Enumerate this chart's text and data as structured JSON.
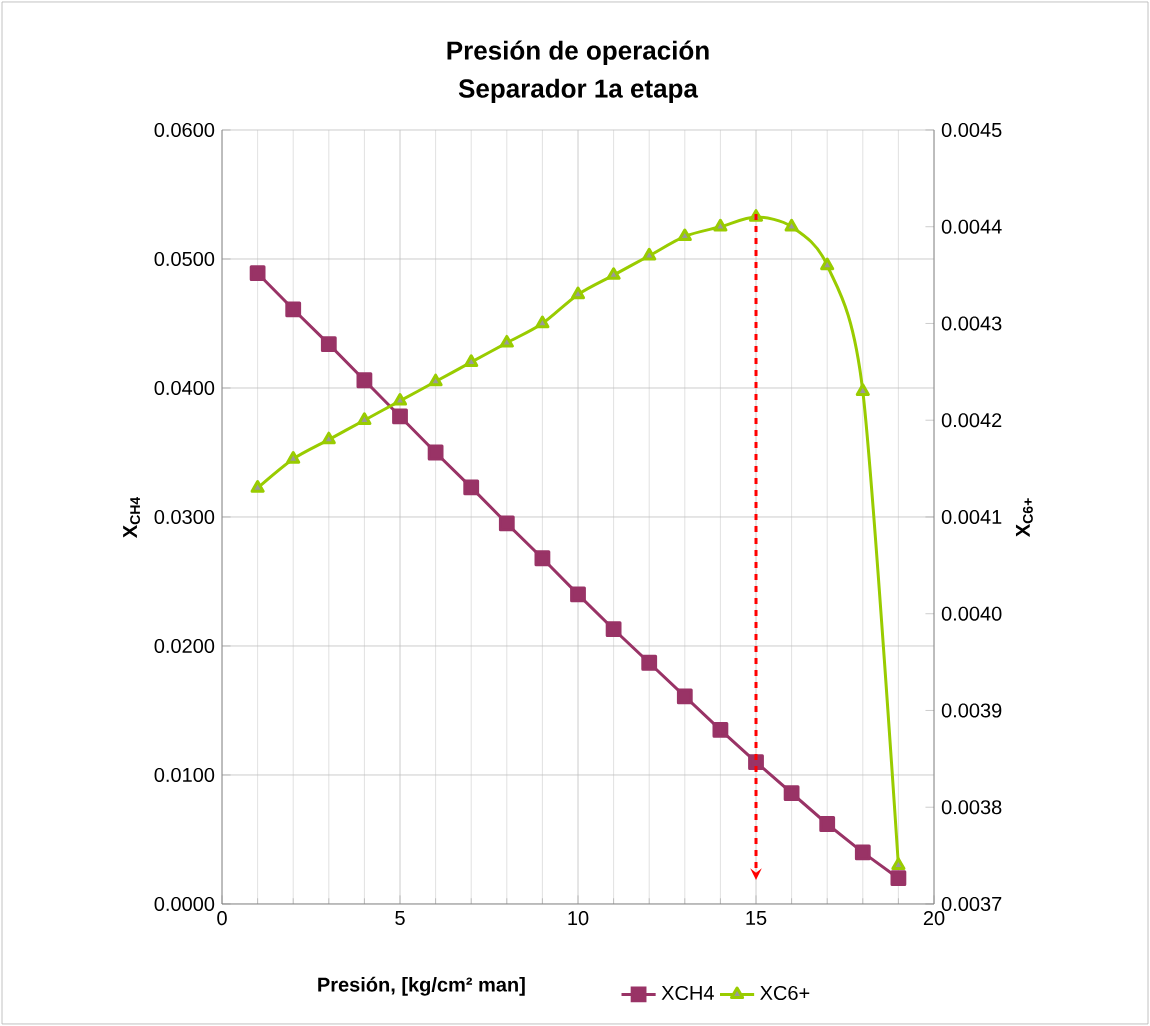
{
  "chart_data": {
    "type": "line",
    "title": "Presión de operación",
    "subtitle": "Separador 1a etapa",
    "xlabel": "Presión, [kg/cm² man]",
    "ylabel": "X$_{CH4}$",
    "y2label": "X$_{C6+}$",
    "x": [
      1,
      2,
      3,
      4,
      5,
      6,
      7,
      8,
      9,
      10,
      11,
      12,
      13,
      14,
      15,
      16,
      17,
      18,
      19
    ],
    "series": [
      {
        "name": "XCH4",
        "color": "#993366",
        "marker": "square",
        "values": [
          0.0489,
          0.0461,
          0.0434,
          0.0406,
          0.0378,
          0.035,
          0.0323,
          0.0295,
          0.0268,
          0.024,
          0.0213,
          0.0187,
          0.0161,
          0.0135,
          0.011,
          0.0086,
          0.0062,
          0.004,
          0.002
        ]
      },
      {
        "name": "XC6+",
        "color": "#99cc00",
        "marker": "triangle",
        "axis": "y2",
        "values": [
          0.00413,
          0.00416,
          0.00418,
          0.0042,
          0.00422,
          0.00424,
          0.00426,
          0.00428,
          0.0043,
          0.00433,
          0.00435,
          0.00437,
          0.00439,
          0.0044,
          0.00441,
          0.0044,
          0.00436,
          0.00423,
          0.00374
        ]
      }
    ],
    "xlim": [
      0,
      20
    ],
    "xticks": [
      0,
      5,
      10,
      15,
      20
    ],
    "ylim": [
      0,
      0.06
    ],
    "yticks": [
      {
        "value": 0,
        "label": "0.0000"
      },
      {
        "value": 0.01,
        "label": "0.0100"
      },
      {
        "value": 0.02,
        "label": "0.0200"
      },
      {
        "value": 0.03,
        "label": "0.0300"
      },
      {
        "value": 0.04,
        "label": "0.0400"
      },
      {
        "value": 0.05,
        "label": "0.0500"
      },
      {
        "value": 0.06,
        "label": "0.0600"
      }
    ],
    "y2lim": [
      0.0037,
      0.0045
    ],
    "y2ticks": [
      {
        "value": 0.0037,
        "label": "0.0037"
      },
      {
        "value": 0.0038,
        "label": "0.0038"
      },
      {
        "value": 0.0039,
        "label": "0.0039"
      },
      {
        "value": 0.004,
        "label": "0.0040"
      },
      {
        "value": 0.0041,
        "label": "0.0041"
      },
      {
        "value": 0.0042,
        "label": "0.0042"
      },
      {
        "value": 0.0043,
        "label": "0.0043"
      },
      {
        "value": 0.0044,
        "label": "0.0044"
      },
      {
        "value": 0.0045,
        "label": "0.0045"
      }
    ],
    "ref_lines": [
      {
        "axis": "x",
        "value": 15,
        "color": "#ff0000",
        "line_style": "dashed"
      }
    ],
    "grid": true,
    "legend": "bottom"
  }
}
